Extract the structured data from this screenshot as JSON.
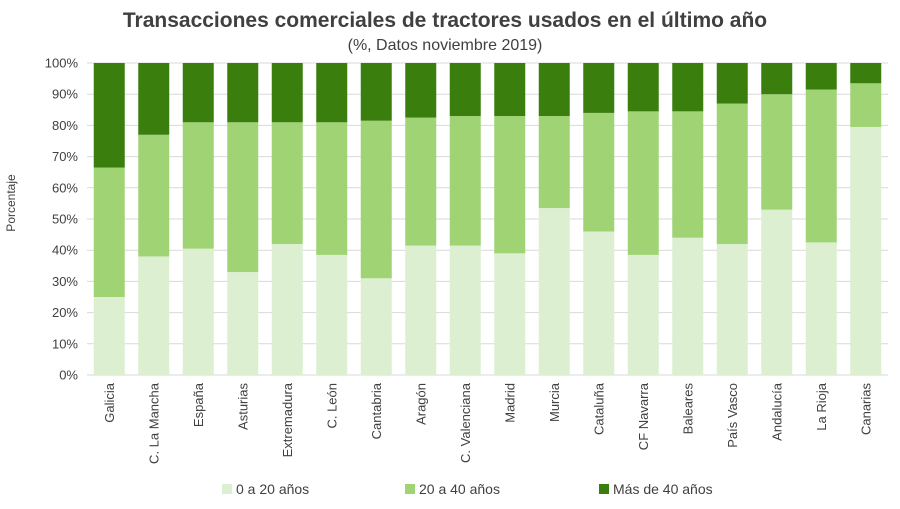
{
  "chart_data": {
    "type": "bar",
    "stacked": true,
    "title": "Transacciones comerciales de tractores usados en el último año",
    "subtitle": "(%, Datos noviembre 2019)",
    "ylabel": "Porcentaje",
    "xlabel": "",
    "ylim": [
      0,
      100
    ],
    "yticks": [
      "0%",
      "10%",
      "20%",
      "30%",
      "40%",
      "50%",
      "60%",
      "70%",
      "80%",
      "90%",
      "100%"
    ],
    "grid": true,
    "legend_position": "bottom",
    "categories": [
      "Galicia",
      "C. La Mancha",
      "España",
      "Asturias",
      "Extremadura",
      "C. León",
      "Cantabria",
      "Aragón",
      "C. Valenciana",
      "Madrid",
      "Murcia",
      "Cataluña",
      "CF Navarra",
      "Baleares",
      "País Vasco",
      "Andalucía",
      "La Rioja",
      "Canarias"
    ],
    "series": [
      {
        "name": "0 a 20 años",
        "color": "#dcefd0",
        "values": [
          25,
          38,
          40.5,
          33,
          42,
          38.5,
          31,
          41.5,
          41.5,
          39,
          53.5,
          46,
          38.5,
          44,
          42,
          53,
          42.5,
          79.5
        ]
      },
      {
        "name": "20 a 40 años",
        "color": "#9fd373",
        "values": [
          41.5,
          39,
          40.5,
          48,
          39,
          42.5,
          50.5,
          41,
          41.5,
          44,
          29.5,
          38,
          46,
          40.5,
          45,
          37,
          49,
          14
        ]
      },
      {
        "name": "Más de 40 años",
        "color": "#3a7f0d",
        "values": [
          33.5,
          23,
          19,
          19,
          19,
          19,
          18.5,
          17.5,
          17,
          17,
          17,
          16,
          15.5,
          15.5,
          13,
          10,
          8.5,
          6.5
        ]
      }
    ]
  }
}
